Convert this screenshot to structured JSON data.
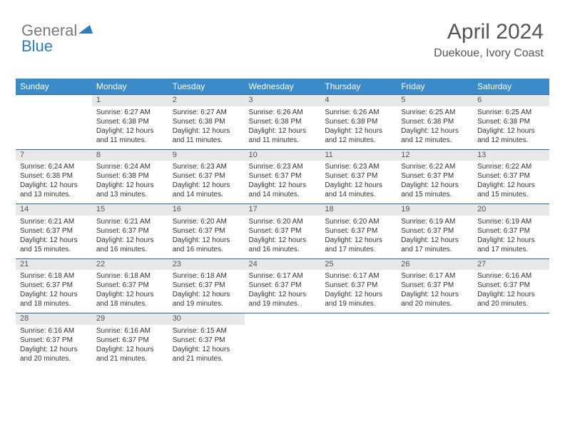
{
  "logo": {
    "general": "General",
    "blue": "Blue"
  },
  "header": {
    "title": "April 2024",
    "location": "Duekoue, Ivory Coast"
  },
  "colors": {
    "header_bg": "#3b8bc9",
    "header_text": "#ffffff",
    "daynum_bg": "#e8e8e8",
    "rule": "#2a6a9a",
    "body_text": "#333333",
    "title_text": "#555555"
  },
  "weekdays": [
    "Sunday",
    "Monday",
    "Tuesday",
    "Wednesday",
    "Thursday",
    "Friday",
    "Saturday"
  ],
  "weeks": [
    [
      null,
      {
        "n": "1",
        "sr": "6:27 AM",
        "ss": "6:38 PM",
        "dl": "12 hours and 11 minutes."
      },
      {
        "n": "2",
        "sr": "6:27 AM",
        "ss": "6:38 PM",
        "dl": "12 hours and 11 minutes."
      },
      {
        "n": "3",
        "sr": "6:26 AM",
        "ss": "6:38 PM",
        "dl": "12 hours and 11 minutes."
      },
      {
        "n": "4",
        "sr": "6:26 AM",
        "ss": "6:38 PM",
        "dl": "12 hours and 12 minutes."
      },
      {
        "n": "5",
        "sr": "6:25 AM",
        "ss": "6:38 PM",
        "dl": "12 hours and 12 minutes."
      },
      {
        "n": "6",
        "sr": "6:25 AM",
        "ss": "6:38 PM",
        "dl": "12 hours and 12 minutes."
      }
    ],
    [
      {
        "n": "7",
        "sr": "6:24 AM",
        "ss": "6:38 PM",
        "dl": "12 hours and 13 minutes."
      },
      {
        "n": "8",
        "sr": "6:24 AM",
        "ss": "6:38 PM",
        "dl": "12 hours and 13 minutes."
      },
      {
        "n": "9",
        "sr": "6:23 AM",
        "ss": "6:37 PM",
        "dl": "12 hours and 14 minutes."
      },
      {
        "n": "10",
        "sr": "6:23 AM",
        "ss": "6:37 PM",
        "dl": "12 hours and 14 minutes."
      },
      {
        "n": "11",
        "sr": "6:23 AM",
        "ss": "6:37 PM",
        "dl": "12 hours and 14 minutes."
      },
      {
        "n": "12",
        "sr": "6:22 AM",
        "ss": "6:37 PM",
        "dl": "12 hours and 15 minutes."
      },
      {
        "n": "13",
        "sr": "6:22 AM",
        "ss": "6:37 PM",
        "dl": "12 hours and 15 minutes."
      }
    ],
    [
      {
        "n": "14",
        "sr": "6:21 AM",
        "ss": "6:37 PM",
        "dl": "12 hours and 15 minutes."
      },
      {
        "n": "15",
        "sr": "6:21 AM",
        "ss": "6:37 PM",
        "dl": "12 hours and 16 minutes."
      },
      {
        "n": "16",
        "sr": "6:20 AM",
        "ss": "6:37 PM",
        "dl": "12 hours and 16 minutes."
      },
      {
        "n": "17",
        "sr": "6:20 AM",
        "ss": "6:37 PM",
        "dl": "12 hours and 16 minutes."
      },
      {
        "n": "18",
        "sr": "6:20 AM",
        "ss": "6:37 PM",
        "dl": "12 hours and 17 minutes."
      },
      {
        "n": "19",
        "sr": "6:19 AM",
        "ss": "6:37 PM",
        "dl": "12 hours and 17 minutes."
      },
      {
        "n": "20",
        "sr": "6:19 AM",
        "ss": "6:37 PM",
        "dl": "12 hours and 17 minutes."
      }
    ],
    [
      {
        "n": "21",
        "sr": "6:18 AM",
        "ss": "6:37 PM",
        "dl": "12 hours and 18 minutes."
      },
      {
        "n": "22",
        "sr": "6:18 AM",
        "ss": "6:37 PM",
        "dl": "12 hours and 18 minutes."
      },
      {
        "n": "23",
        "sr": "6:18 AM",
        "ss": "6:37 PM",
        "dl": "12 hours and 19 minutes."
      },
      {
        "n": "24",
        "sr": "6:17 AM",
        "ss": "6:37 PM",
        "dl": "12 hours and 19 minutes."
      },
      {
        "n": "25",
        "sr": "6:17 AM",
        "ss": "6:37 PM",
        "dl": "12 hours and 19 minutes."
      },
      {
        "n": "26",
        "sr": "6:17 AM",
        "ss": "6:37 PM",
        "dl": "12 hours and 20 minutes."
      },
      {
        "n": "27",
        "sr": "6:16 AM",
        "ss": "6:37 PM",
        "dl": "12 hours and 20 minutes."
      }
    ],
    [
      {
        "n": "28",
        "sr": "6:16 AM",
        "ss": "6:37 PM",
        "dl": "12 hours and 20 minutes."
      },
      {
        "n": "29",
        "sr": "6:16 AM",
        "ss": "6:37 PM",
        "dl": "12 hours and 21 minutes."
      },
      {
        "n": "30",
        "sr": "6:15 AM",
        "ss": "6:37 PM",
        "dl": "12 hours and 21 minutes."
      },
      null,
      null,
      null,
      null
    ]
  ],
  "labels": {
    "sunrise": "Sunrise:",
    "sunset": "Sunset:",
    "daylight": "Daylight:"
  }
}
